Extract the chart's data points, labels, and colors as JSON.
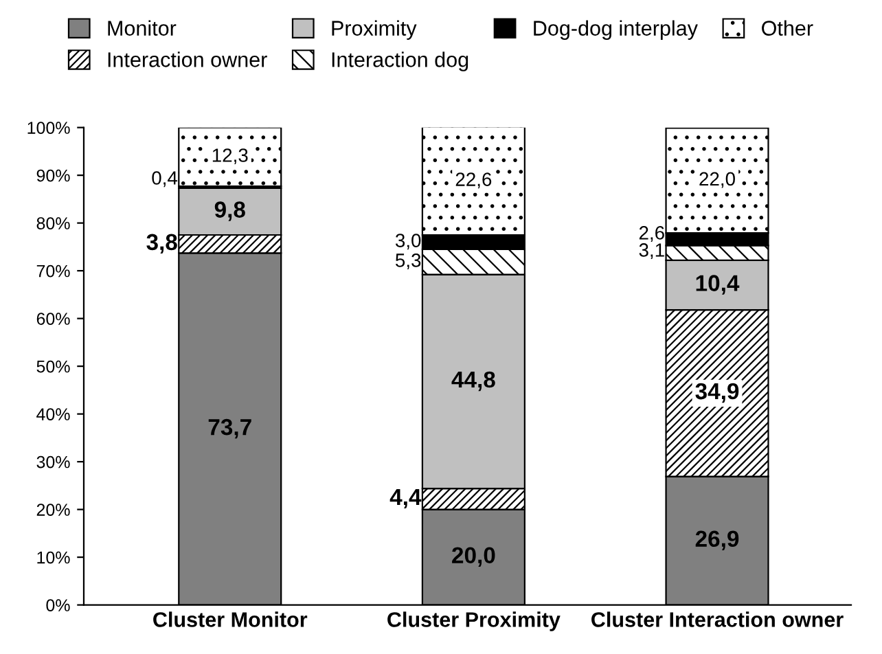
{
  "chart_data": {
    "type": "bar",
    "stacked": true,
    "categories": [
      "Cluster Monitor",
      "Cluster Proximity",
      "Cluster Interaction owner"
    ],
    "series": [
      {
        "name": "Monitor",
        "color": "#808080",
        "values": [
          73.7,
          20.0,
          26.9
        ],
        "value_labels": [
          "73,7",
          "20,0",
          "26,9"
        ]
      },
      {
        "name": "Interaction owner",
        "color": "#000000",
        "values": [
          3.8,
          4.4,
          34.9
        ],
        "value_labels": [
          "3,8",
          "4,4",
          "34,9"
        ]
      },
      {
        "name": "Proximity",
        "color": "#c0c0c0",
        "values": [
          9.8,
          44.8,
          10.4
        ],
        "value_labels": [
          "9,8",
          "44,8",
          "10,4"
        ]
      },
      {
        "name": "Interaction dog",
        "color": "#000000",
        "values": [
          0,
          5.3,
          3.1
        ],
        "value_labels": [
          null,
          "5,3",
          "3,1"
        ]
      },
      {
        "name": "Dog-dog interplay",
        "color": "#000000",
        "values": [
          0.4,
          3.0,
          2.6
        ],
        "value_labels": [
          "0,4",
          "3,0",
          "2,6"
        ]
      },
      {
        "name": "Other",
        "color": "#000000",
        "values": [
          12.3,
          22.6,
          22.0
        ],
        "value_labels": [
          "12,3",
          "22,6",
          "22,0"
        ]
      }
    ],
    "ylim": [
      0,
      100
    ],
    "yticks": [
      {
        "value": 0,
        "label": "0%"
      },
      {
        "value": 10,
        "label": "10%"
      },
      {
        "value": 20,
        "label": "20%"
      },
      {
        "value": 30,
        "label": "30%"
      },
      {
        "value": 40,
        "label": "40%"
      },
      {
        "value": 50,
        "label": "50%"
      },
      {
        "value": 60,
        "label": "60%"
      },
      {
        "value": 70,
        "label": "70%"
      },
      {
        "value": 80,
        "label": "80%"
      },
      {
        "value": 90,
        "label": "90%"
      },
      {
        "value": 100,
        "label": "100%"
      }
    ],
    "legend": "top",
    "grid": false
  }
}
